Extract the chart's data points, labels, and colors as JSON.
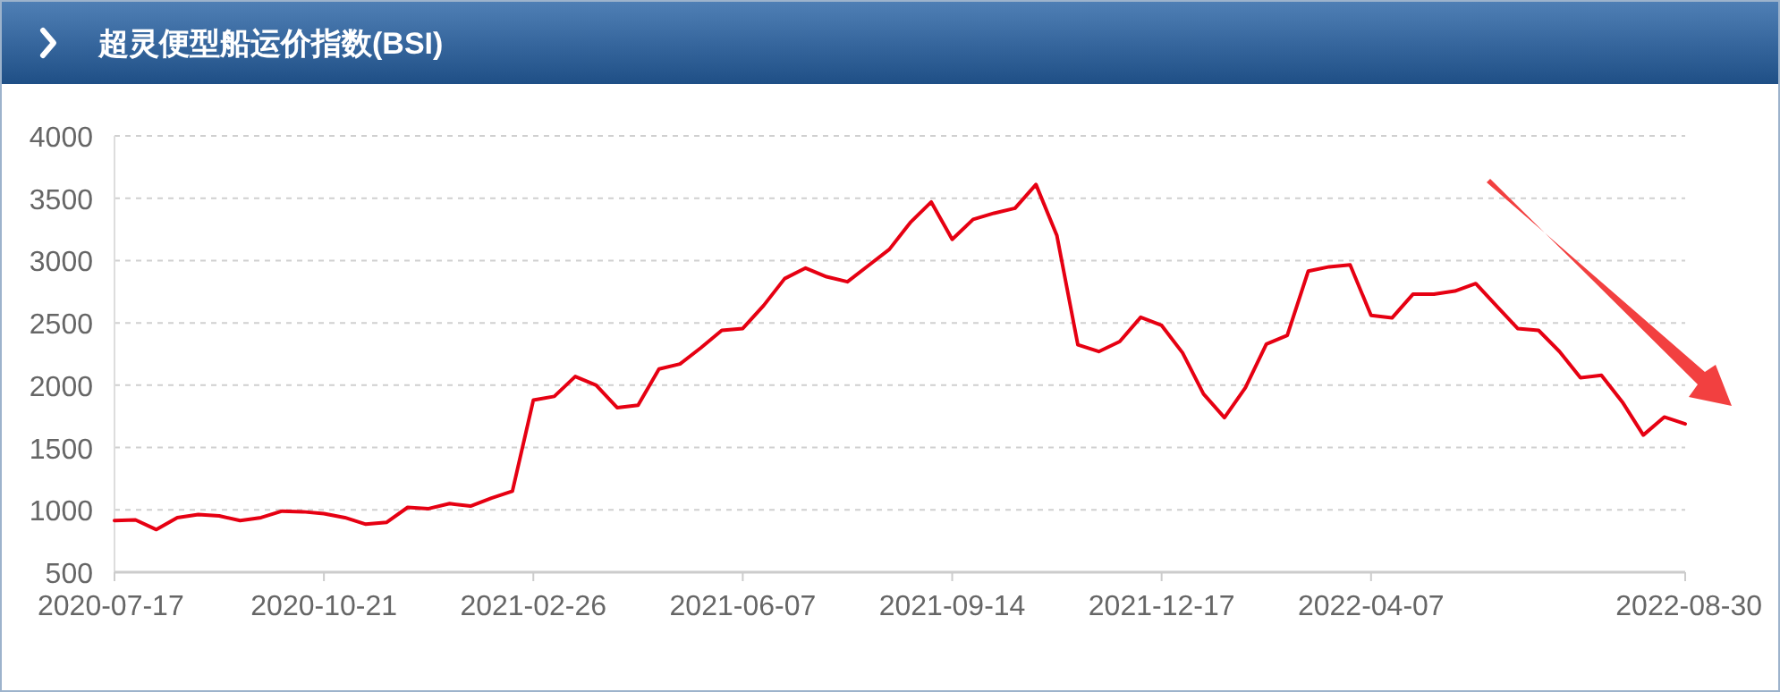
{
  "chart_data": {
    "type": "line",
    "title": "超灵便型船运价指数(BSI)",
    "categories": [
      "2020-07-17",
      null,
      null,
      null,
      null,
      null,
      null,
      null,
      null,
      null,
      "2020-10-21",
      null,
      null,
      null,
      null,
      null,
      null,
      null,
      null,
      null,
      "2021-02-26",
      null,
      null,
      null,
      null,
      null,
      null,
      null,
      null,
      null,
      "2021-06-07",
      null,
      null,
      null,
      null,
      null,
      null,
      null,
      null,
      null,
      "2021-09-14",
      null,
      null,
      null,
      null,
      null,
      null,
      null,
      null,
      null,
      "2021-12-17",
      null,
      null,
      null,
      null,
      null,
      null,
      null,
      null,
      null,
      "2022-04-07",
      null,
      null,
      null,
      null,
      null,
      null,
      null,
      null,
      null,
      null,
      null,
      null,
      null,
      null,
      "2022-08-30"
    ],
    "series": [
      {
        "color": "#e60012",
        "values": [
          915,
          920,
          842,
          938,
          962,
          952,
          914,
          938,
          990,
          985,
          970,
          938,
          885,
          900,
          1020,
          1010,
          1050,
          1030,
          1095,
          1150,
          1880,
          1910,
          2070,
          2000,
          1820,
          1840,
          2130,
          2170,
          2300,
          2440,
          2455,
          2640,
          2855,
          2940,
          2870,
          2830,
          2960,
          3090,
          3305,
          3470,
          3170,
          3330,
          3380,
          3420,
          3610,
          3200,
          2325,
          2270,
          2350,
          2545,
          2480,
          2260,
          1930,
          1740,
          1980,
          2330,
          2400,
          2915,
          2950,
          2965,
          2560,
          2540,
          2730,
          2730,
          2755,
          2815,
          2635,
          2455,
          2440,
          2270,
          2060,
          2080,
          1865,
          1600,
          1745,
          1690
        ]
      }
    ],
    "ylim": [
      500,
      4000
    ],
    "yticks": [
      500,
      1000,
      1500,
      2000,
      2500,
      3000,
      3500,
      4000
    ],
    "grid": "y",
    "marker": "none",
    "line_style": "solid"
  }
}
